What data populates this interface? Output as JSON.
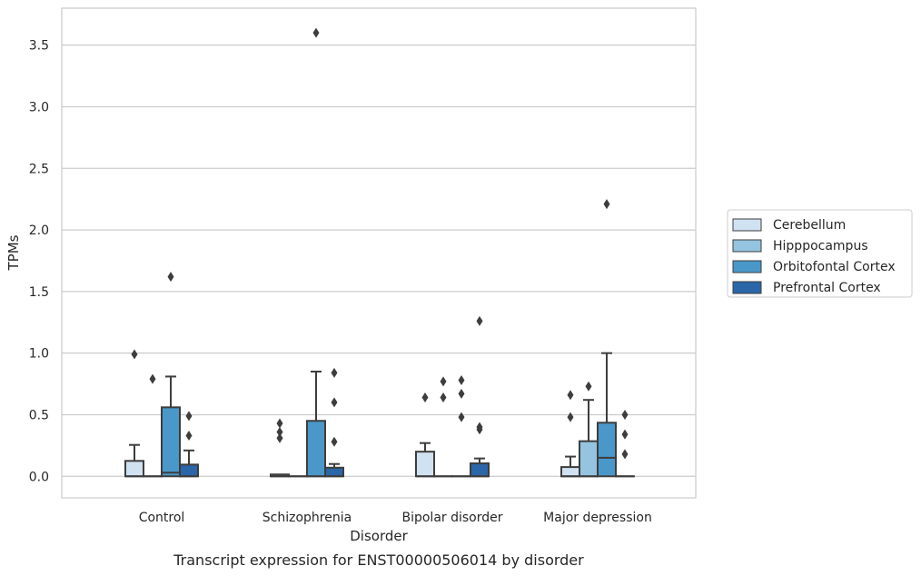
{
  "chart_data": {
    "type": "box",
    "title": "",
    "caption": "Transcript expression for ENST00000506014 by disorder",
    "xlabel": "Disorder",
    "ylabel": "TPMs",
    "ylim": [
      -0.175,
      3.8
    ],
    "yticks": [
      "0.0",
      "0.5",
      "1.0",
      "1.5",
      "2.0",
      "2.5",
      "3.0",
      "3.5"
    ],
    "grid": "horizontal",
    "legend_position": "right",
    "categories": [
      "Control",
      "Schizophrenia",
      "Bipolar disorder",
      "Major depression"
    ],
    "series": [
      {
        "name": "Cerebellum",
        "color": "#d0e1f2",
        "boxes": [
          {
            "category": "Control",
            "q1": 0.0,
            "median": 0.0,
            "q3": 0.125,
            "whisker_low": 0.0,
            "whisker_high": 0.255,
            "outliers": [
              0.99
            ]
          },
          {
            "category": "Schizophrenia",
            "q1": 0.0,
            "median": 0.0,
            "q3": 0.015,
            "whisker_low": 0.0,
            "whisker_high": 0.015,
            "outliers": [
              0.31,
              0.36,
              0.43
            ]
          },
          {
            "category": "Bipolar disorder",
            "q1": 0.0,
            "median": 0.0,
            "q3": 0.2,
            "whisker_low": 0.0,
            "whisker_high": 0.27,
            "outliers": [
              0.64
            ]
          },
          {
            "category": "Major depression",
            "q1": 0.0,
            "median": 0.0,
            "q3": 0.075,
            "whisker_low": 0.0,
            "whisker_high": 0.16,
            "outliers": [
              0.48,
              0.66
            ]
          }
        ]
      },
      {
        "name": "Hipppocampus",
        "color": "#94c4df",
        "boxes": [
          {
            "category": "Control",
            "q1": 0.0,
            "median": 0.0,
            "q3": 0.0,
            "whisker_low": 0.0,
            "whisker_high": 0.0,
            "outliers": [
              0.79
            ]
          },
          {
            "category": "Schizophrenia",
            "q1": 0.0,
            "median": 0.0,
            "q3": 0.0,
            "whisker_low": 0.0,
            "whisker_high": 0.0,
            "outliers": []
          },
          {
            "category": "Bipolar disorder",
            "q1": 0.0,
            "median": 0.0,
            "q3": 0.0,
            "whisker_low": 0.0,
            "whisker_high": 0.0,
            "outliers": [
              0.64,
              0.77
            ]
          },
          {
            "category": "Major depression",
            "q1": 0.0,
            "median": 0.0,
            "q3": 0.285,
            "whisker_low": 0.0,
            "whisker_high": 0.62,
            "outliers": [
              0.73
            ]
          }
        ]
      },
      {
        "name": "Orbitofontal Cortex",
        "color": "#4a98c9",
        "boxes": [
          {
            "category": "Control",
            "q1": 0.0,
            "median": 0.03,
            "q3": 0.56,
            "whisker_low": 0.0,
            "whisker_high": 0.81,
            "outliers": [
              1.62
            ]
          },
          {
            "category": "Schizophrenia",
            "q1": 0.0,
            "median": 0.0,
            "q3": 0.45,
            "whisker_low": 0.0,
            "whisker_high": 0.85,
            "outliers": [
              3.6
            ]
          },
          {
            "category": "Bipolar disorder",
            "q1": 0.0,
            "median": 0.0,
            "q3": 0.0,
            "whisker_low": 0.0,
            "whisker_high": 0.0,
            "outliers": [
              0.48,
              0.67,
              0.78
            ]
          },
          {
            "category": "Major depression",
            "q1": 0.0,
            "median": 0.15,
            "q3": 0.435,
            "whisker_low": 0.0,
            "whisker_high": 1.0,
            "outliers": [
              2.21
            ]
          }
        ]
      },
      {
        "name": "Prefrontal Cortex",
        "color": "#2a66a8",
        "boxes": [
          {
            "category": "Control",
            "q1": 0.0,
            "median": 0.0,
            "q3": 0.095,
            "whisker_low": 0.0,
            "whisker_high": 0.21,
            "outliers": [
              0.33,
              0.49
            ]
          },
          {
            "category": "Schizophrenia",
            "q1": 0.0,
            "median": 0.0,
            "q3": 0.07,
            "whisker_low": 0.0,
            "whisker_high": 0.1,
            "outliers": [
              0.28,
              0.6,
              0.84
            ]
          },
          {
            "category": "Bipolar disorder",
            "q1": 0.0,
            "median": 0.0,
            "q3": 0.105,
            "whisker_low": 0.0,
            "whisker_high": 0.145,
            "outliers": [
              0.38,
              0.4,
              1.26
            ]
          },
          {
            "category": "Major depression",
            "q1": 0.0,
            "median": 0.0,
            "q3": 0.0,
            "whisker_low": 0.0,
            "whisker_high": 0.0,
            "outliers": [
              0.18,
              0.34,
              0.5
            ]
          }
        ]
      }
    ]
  }
}
